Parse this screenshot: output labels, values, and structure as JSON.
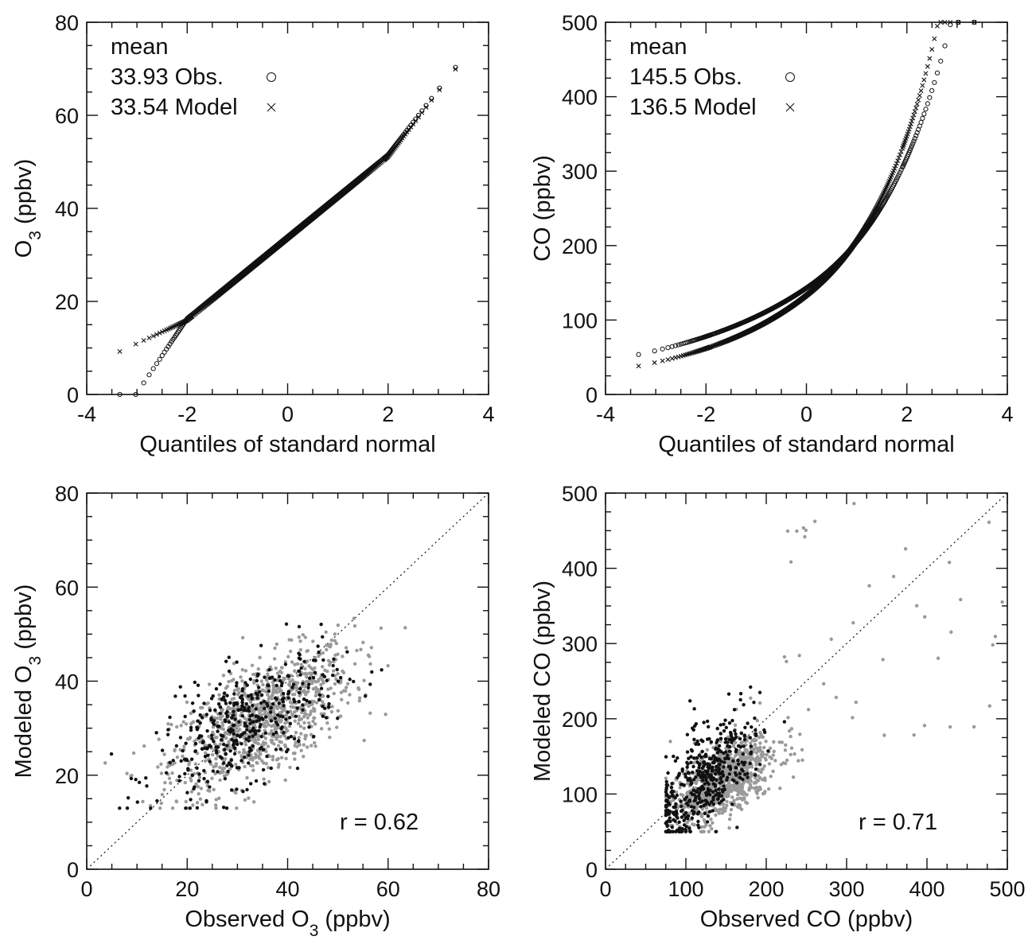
{
  "chart_data": [
    {
      "type": "scatter",
      "panel": "qq-o3",
      "xlabel": "Quantiles of standard normal",
      "ylabel": "O",
      "ylabel_sub": "3",
      "ylabel_unit": " (ppbv)",
      "xlim": [
        -4,
        4
      ],
      "ylim": [
        0,
        80
      ],
      "x_ticks": [
        -4,
        -2,
        0,
        2,
        4
      ],
      "y_ticks": [
        0,
        20,
        40,
        60,
        80
      ],
      "x_tick_labels": [
        "-4",
        "-2",
        "0",
        "2",
        "4"
      ],
      "y_tick_labels": [
        "0",
        "20",
        "40",
        "60",
        "80"
      ],
      "legend": {
        "title": "mean",
        "entries": [
          {
            "label": "33.93 Obs.",
            "marker": "circle"
          },
          {
            "label": "33.54 Model",
            "marker": "cross"
          }
        ]
      },
      "series": [
        {
          "name": "Obs.",
          "marker": "circle",
          "mean": 33.93,
          "min": 7,
          "max": 63.5,
          "skew": 0,
          "a": 7,
          "b": 14
        },
        {
          "name": "Model",
          "marker": "cross",
          "mean": 33.54,
          "min": 14,
          "max": 70,
          "skew": 0,
          "a": 3,
          "b": 14
        }
      ]
    },
    {
      "type": "scatter",
      "panel": "qq-co",
      "xlabel": "Quantiles of standard normal",
      "ylabel": "CO (ppbv)",
      "xlim": [
        -4,
        4
      ],
      "ylim": [
        0,
        500
      ],
      "x_ticks": [
        -4,
        -2,
        0,
        2,
        4
      ],
      "y_ticks": [
        0,
        100,
        200,
        300,
        400,
        500
      ],
      "x_tick_labels": [
        "-4",
        "-2",
        "0",
        "2",
        "4"
      ],
      "y_tick_labels": [
        "0",
        "100",
        "200",
        "300",
        "400",
        "500"
      ],
      "legend": {
        "title": "mean",
        "entries": [
          {
            "label": "145.5 Obs.",
            "marker": "circle"
          },
          {
            "label": "136.5 Model",
            "marker": "cross"
          }
        ]
      },
      "series": [
        {
          "name": "Obs.",
          "marker": "circle",
          "mean": 145.5,
          "min": 72,
          "max": 500,
          "skew": 1
        },
        {
          "name": "Model",
          "marker": "cross",
          "mean": 136.5,
          "min": 50,
          "max": 500,
          "skew": 1
        }
      ]
    },
    {
      "type": "scatter",
      "panel": "scatter-o3",
      "xlabel": "Observed O",
      "xlabel_sub": "3",
      "xlabel_unit": " (ppbv)",
      "ylabel": "Modeled O",
      "ylabel_sub": "3",
      "ylabel_unit": " (ppbv)",
      "xlim": [
        0,
        80
      ],
      "ylim": [
        0,
        80
      ],
      "x_ticks": [
        0,
        20,
        40,
        60,
        80
      ],
      "y_ticks": [
        0,
        20,
        40,
        60,
        80
      ],
      "x_tick_labels": [
        "0",
        "20",
        "40",
        "60",
        "80"
      ],
      "y_tick_labels": [
        "0",
        "20",
        "40",
        "60",
        "80"
      ],
      "annotation": "r = 0.62",
      "reference_line": "1:1",
      "series": [
        {
          "name": "black",
          "color": "#111111",
          "n": 420,
          "center_x": 32,
          "center_y": 31,
          "sd_x": 9,
          "sd_y": 7.5,
          "rho": 0.62
        },
        {
          "name": "gray",
          "color": "#9a9a9a",
          "n": 1000,
          "center_x": 35,
          "center_y": 32,
          "sd_x": 9,
          "sd_y": 7.5,
          "rho": 0.62
        }
      ]
    },
    {
      "type": "scatter",
      "panel": "scatter-co",
      "xlabel": "Observed CO (ppbv)",
      "ylabel": "Modeled CO (ppbv)",
      "xlim": [
        0,
        500
      ],
      "ylim": [
        0,
        500
      ],
      "x_ticks": [
        0,
        100,
        200,
        300,
        400,
        500
      ],
      "y_ticks": [
        0,
        100,
        200,
        300,
        400,
        500
      ],
      "x_tick_labels": [
        "0",
        "100",
        "200",
        "300",
        "400",
        "500"
      ],
      "y_tick_labels": [
        "0",
        "100",
        "200",
        "300",
        "400",
        "500"
      ],
      "annotation": "r = 0.71",
      "reference_line": "1:1",
      "series": [
        {
          "name": "black",
          "color": "#111111",
          "n": 480,
          "center_x": 125,
          "center_y": 120,
          "sd_x": 35,
          "sd_y": 45,
          "rho": 0.7
        },
        {
          "name": "gray",
          "color": "#9a9a9a",
          "n": 950,
          "center_x": 150,
          "center_y": 120,
          "sd_x": 35,
          "sd_y": 30,
          "rho": 0.6
        }
      ]
    }
  ]
}
